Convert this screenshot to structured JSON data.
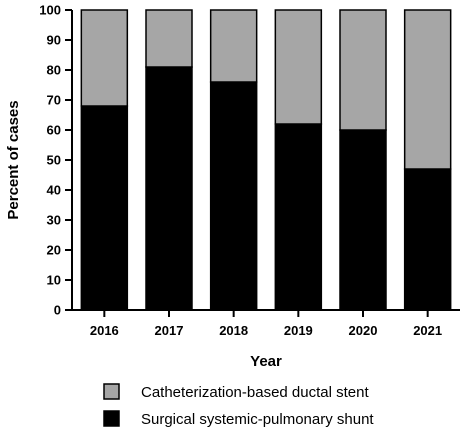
{
  "chart_data": {
    "type": "bar",
    "stacked": true,
    "categories": [
      "2016",
      "2017",
      "2018",
      "2019",
      "2020",
      "2021"
    ],
    "series": [
      {
        "name": "Surgical systemic-pulmonary shunt",
        "values": [
          68,
          81,
          76,
          62,
          60,
          47
        ],
        "color": "#000000"
      },
      {
        "name": "Catheterization-based ductal stent",
        "values": [
          32,
          19,
          24,
          38,
          40,
          53
        ],
        "color": "#a6a6a6"
      }
    ],
    "xlabel": "Year",
    "ylabel": "Percent of cases",
    "ylim": [
      0,
      100
    ],
    "yticks": [
      0,
      10,
      20,
      30,
      40,
      50,
      60,
      70,
      80,
      90,
      100
    ],
    "grid": false,
    "legend_position": "bottom",
    "legend_order": [
      "Catheterization-based ductal stent",
      "Surgical systemic-pulmonary shunt"
    ]
  }
}
